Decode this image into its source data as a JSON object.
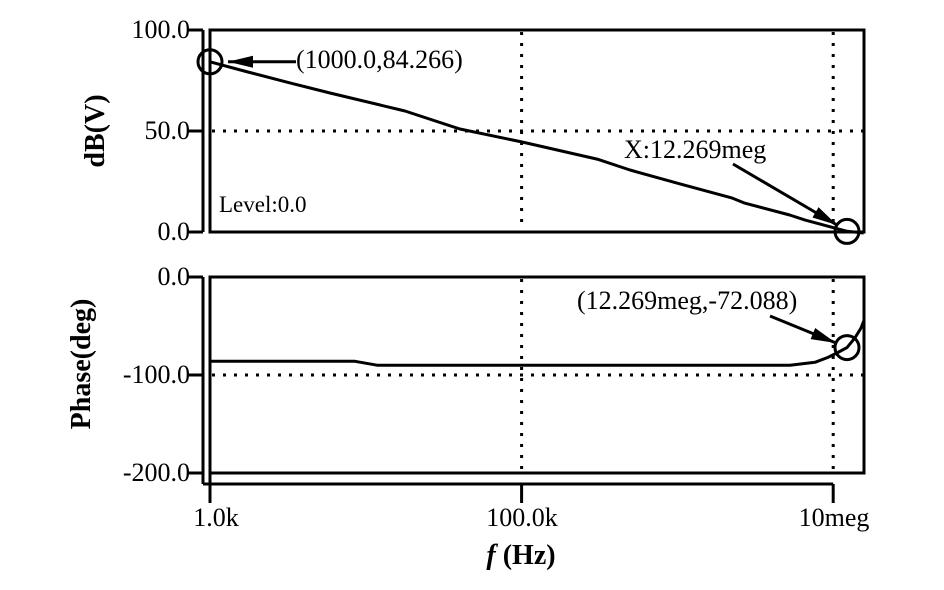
{
  "figure": {
    "bg_color": "#ffffff",
    "fg_color": "#000000"
  },
  "top_plot": {
    "ylabel": "dB(V)",
    "ytick_labels": [
      "100.0",
      "50.0",
      "0.0"
    ],
    "level_label": "Level:0.0",
    "start_marker_label": "(1000.0,84.266)",
    "cursor_label": "X:12.269meg"
  },
  "bottom_plot": {
    "ylabel": "Phase(deg)",
    "ytick_labels": [
      "0.0",
      "-100.0",
      "-200.0"
    ],
    "cursor_marker_label": "(12.269meg,-72.088)"
  },
  "xaxis": {
    "tick_labels": [
      "1.0k",
      "100.0k",
      "10meg"
    ],
    "label_italic": "f",
    "label_rest": "(Hz)"
  },
  "chart_data": [
    {
      "type": "line",
      "title": "",
      "xlabel": "f (Hz)",
      "ylabel": "dB(V)",
      "xscale": "log",
      "xlim": [
        1000,
        15700000
      ],
      "ylim": [
        0,
        100
      ],
      "xtick_values": [
        1000,
        100000,
        10000000
      ],
      "xtick_labels": [
        "1.0k",
        "100.0k",
        "10meg"
      ],
      "ytick_values": [
        100,
        50,
        0
      ],
      "ytick_labels": [
        "100.0",
        "50.0",
        "0.0"
      ],
      "grid": "dotted at y=50 and at x=100k,10meg",
      "legend": "none",
      "series": [
        {
          "name": "dB(V)",
          "points": [
            [
              1000,
              84.266
            ],
            [
              1750,
              79.2
            ],
            [
              3260,
              73.8
            ],
            [
              5890,
              68.8
            ],
            [
              17850,
              59.9
            ],
            [
              40200,
              51.0
            ],
            [
              100000,
              44.6
            ],
            [
              305000,
              36.1
            ],
            [
              496000,
              30.7
            ],
            [
              1040000,
              23.8
            ],
            [
              2250000,
              16.8
            ],
            [
              2680000,
              14.4
            ],
            [
              5260000,
              8.4
            ],
            [
              6600000,
              5.9
            ],
            [
              12269000,
              0.35
            ],
            [
              15700000,
              -0.5
            ]
          ]
        }
      ],
      "markers": [
        {
          "x": 1000,
          "y": 84.266,
          "label": "(1000.0,84.266)"
        },
        {
          "x": 12269000,
          "y": 0.3,
          "label": "X:12.269meg"
        }
      ],
      "annotations": [
        {
          "text": "Level:0.0"
        }
      ]
    },
    {
      "type": "line",
      "title": "",
      "xlabel": "f (Hz)",
      "ylabel": "Phase(deg)",
      "xscale": "log",
      "xlim": [
        1000,
        15700000
      ],
      "ylim": [
        -200,
        0
      ],
      "xtick_values": [
        1000,
        100000,
        10000000
      ],
      "xtick_labels": [
        "1.0k",
        "100.0k",
        "10meg"
      ],
      "ytick_values": [
        0,
        -100,
        -200
      ],
      "ytick_labels": [
        "0.0",
        "-100.0",
        "-200.0"
      ],
      "grid": "dotted at y=-100 and at x=100k,10meg",
      "legend": "none",
      "series": [
        {
          "name": "Phase(deg)",
          "points": [
            [
              1000,
              -86
            ],
            [
              8530,
              -86
            ],
            [
              11800,
              -90
            ],
            [
              5280000,
              -90
            ],
            [
              7640000,
              -87
            ],
            [
              9260000,
              -82
            ],
            [
              10700000,
              -77
            ],
            [
              12269000,
              -72.088
            ],
            [
              13800000,
              -62
            ],
            [
              15080000,
              -52
            ],
            [
              15700000,
              -45
            ]
          ]
        }
      ],
      "markers": [
        {
          "x": 12269000,
          "y": -72.088,
          "label": "(12.269meg,-72.088)"
        }
      ],
      "annotations": []
    }
  ]
}
